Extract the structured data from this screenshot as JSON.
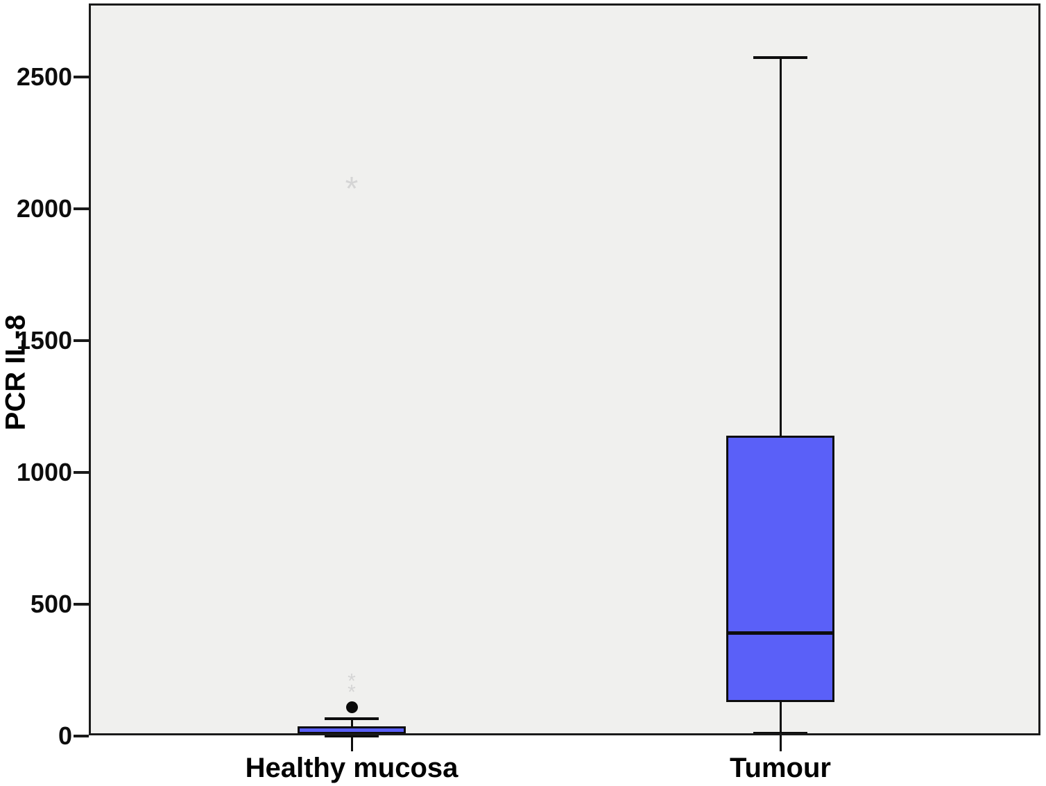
{
  "figure": {
    "background": "#ffffff",
    "plot_background": "#f0f0ee",
    "frame_color": "#1a1a1a",
    "box_fill": "#5a60f8",
    "box_border": "#0d0d0d",
    "outlier_star_color": "#d5d5d5",
    "outlier_dot_color": "#0a0a0a"
  },
  "chart_data": {
    "type": "boxplot",
    "title": "",
    "xlabel": "",
    "ylabel": "PCR IL-8",
    "categories": [
      "Healthy mucosa",
      "Tumour"
    ],
    "y_ticks": [
      0,
      500,
      1000,
      1500,
      2000,
      2500
    ],
    "ylim": [
      0,
      2780
    ],
    "grid": false,
    "legend": null,
    "series": [
      {
        "name": "Healthy mucosa",
        "whisker_low": 0,
        "q1": 2,
        "median": 10,
        "q3": 38,
        "whisker_high": 65,
        "outliers_circle": [
          110
        ],
        "outliers_star": [
          175,
          215
        ],
        "outliers_extreme_star": [
          2090
        ]
      },
      {
        "name": "Tumour",
        "whisker_low": 10,
        "q1": 130,
        "median": 390,
        "q3": 1140,
        "whisker_high": 2575,
        "outliers_circle": [],
        "outliers_star": [],
        "outliers_extreme_star": []
      }
    ]
  }
}
